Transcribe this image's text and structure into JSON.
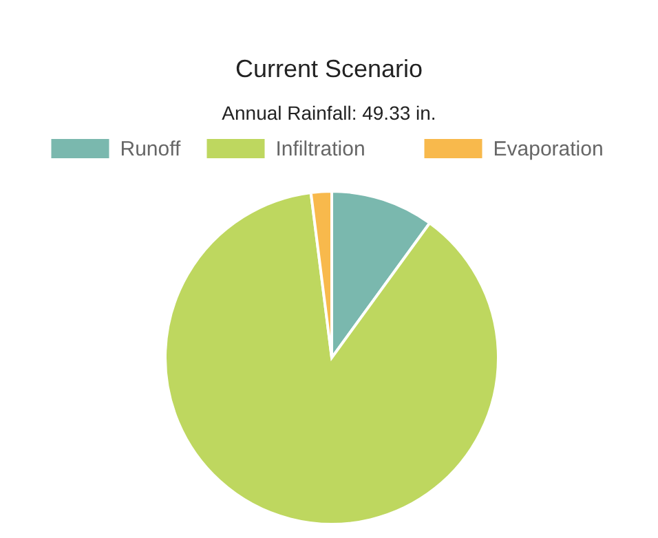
{
  "chart_data": {
    "type": "pie",
    "title": "Current Scenario",
    "subtitle": "Annual Rainfall: 49.33 in.",
    "categories": [
      "Runoff",
      "Infiltration",
      "Evaporation"
    ],
    "values": [
      10,
      88,
      2
    ],
    "colors": [
      "#7ab8ae",
      "#bed75f",
      "#f8b94c"
    ],
    "legend": "top"
  }
}
